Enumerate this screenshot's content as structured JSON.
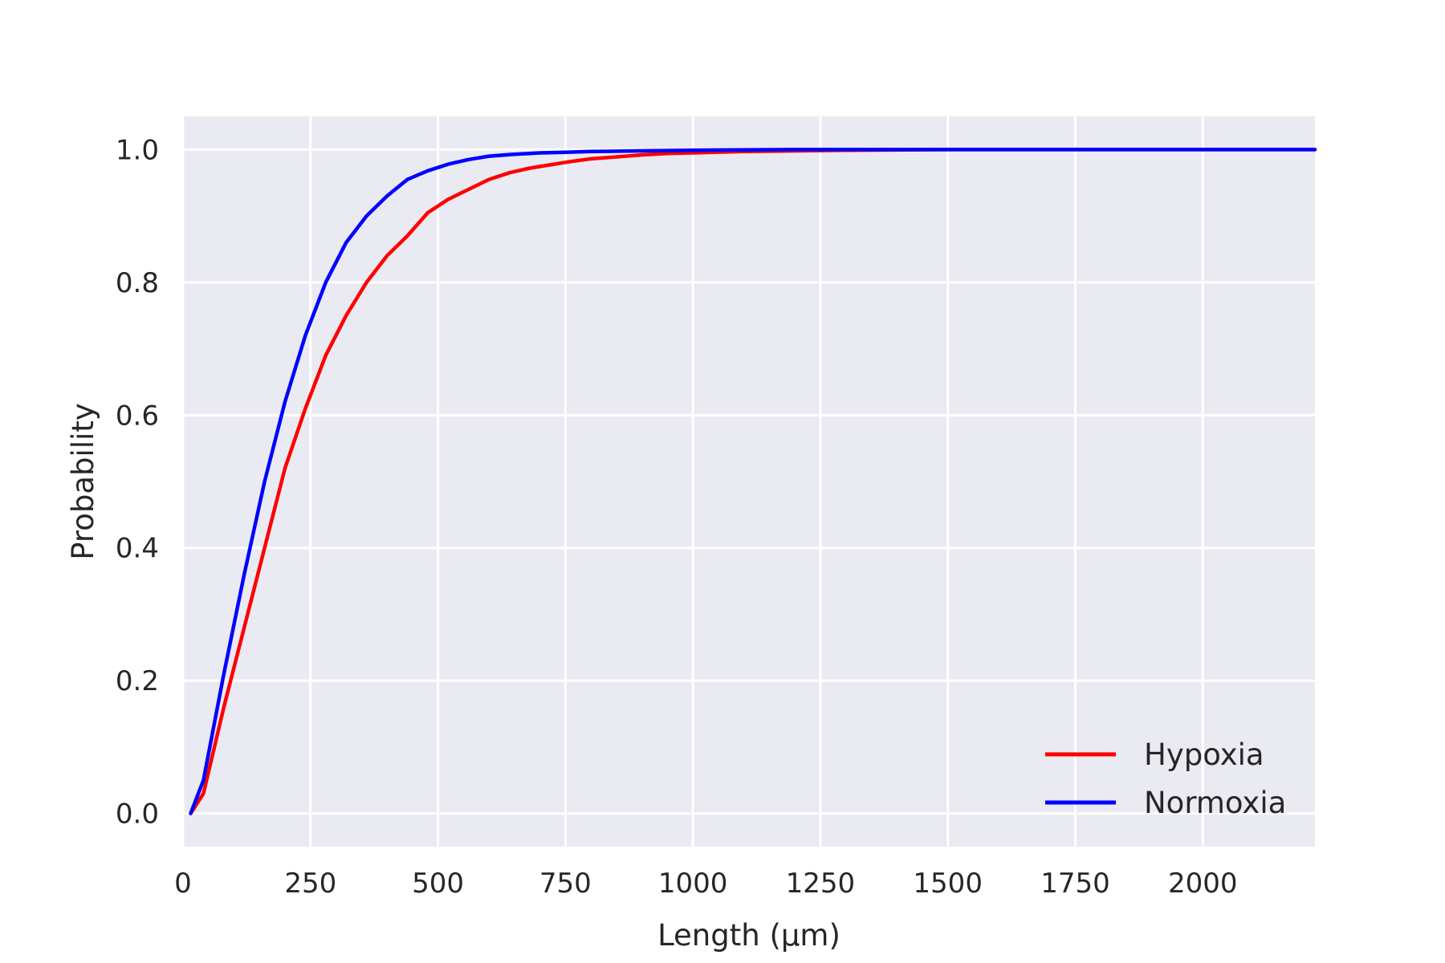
{
  "chart_data": {
    "type": "line",
    "xlabel": "Length (µm)",
    "ylabel": "Probability",
    "xlim": [
      0,
      2220
    ],
    "ylim": [
      -0.05,
      1.05
    ],
    "xticks": [
      0,
      250,
      500,
      750,
      1000,
      1250,
      1500,
      1750,
      2000
    ],
    "xtick_labels": [
      "0",
      "250",
      "500",
      "750",
      "1000",
      "1250",
      "1500",
      "1750",
      "2000"
    ],
    "yticks": [
      0.0,
      0.2,
      0.4,
      0.6,
      0.8,
      1.0
    ],
    "ytick_labels": [
      "0.0",
      "0.2",
      "0.4",
      "0.6",
      "0.8",
      "1.0"
    ],
    "grid": true,
    "background": "#eaeaf2",
    "legend_position": "bottom-right",
    "series": [
      {
        "name": "Hypoxia",
        "color": "#ff0000",
        "x": [
          15,
          40,
          80,
          120,
          160,
          200,
          240,
          280,
          320,
          360,
          400,
          440,
          480,
          520,
          560,
          600,
          640,
          680,
          720,
          760,
          800,
          850,
          900,
          950,
          1000,
          1100,
          1200,
          1300,
          1500,
          1800,
          2220
        ],
        "y": [
          0.0,
          0.03,
          0.16,
          0.28,
          0.4,
          0.52,
          0.61,
          0.69,
          0.75,
          0.8,
          0.84,
          0.87,
          0.905,
          0.925,
          0.94,
          0.955,
          0.965,
          0.972,
          0.977,
          0.982,
          0.986,
          0.989,
          0.992,
          0.994,
          0.995,
          0.997,
          0.998,
          0.999,
          1.0,
          1.0,
          1.0
        ]
      },
      {
        "name": "Normoxia",
        "color": "#0000ff",
        "x": [
          15,
          40,
          80,
          120,
          160,
          200,
          240,
          280,
          320,
          360,
          400,
          440,
          480,
          520,
          560,
          600,
          650,
          700,
          750,
          800,
          900,
          1000,
          1200,
          1500,
          2220
        ],
        "y": [
          0.0,
          0.05,
          0.21,
          0.36,
          0.5,
          0.62,
          0.72,
          0.8,
          0.86,
          0.9,
          0.93,
          0.955,
          0.968,
          0.978,
          0.985,
          0.99,
          0.993,
          0.995,
          0.996,
          0.997,
          0.998,
          0.999,
          1.0,
          1.0,
          1.0
        ]
      }
    ]
  }
}
